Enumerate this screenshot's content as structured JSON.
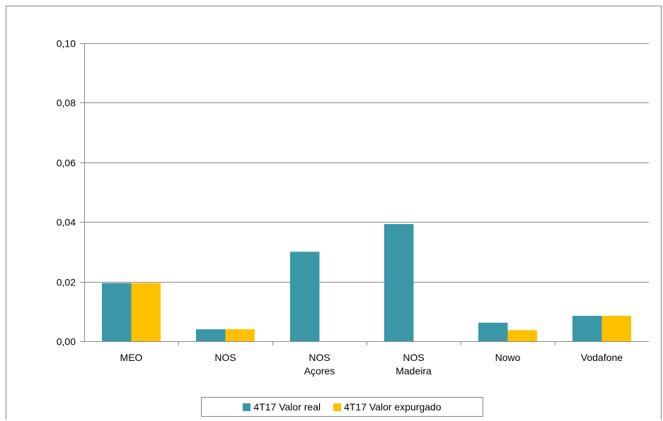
{
  "chart_data": {
    "type": "bar",
    "categories": [
      [
        "MEO"
      ],
      [
        "NOS"
      ],
      [
        "NOS",
        "Açores"
      ],
      [
        "NOS",
        "Madeira"
      ],
      [
        "Nowo"
      ],
      [
        "Vodafone"
      ]
    ],
    "series": [
      {
        "name": "4T17 Valor real",
        "color": "#3a97a8",
        "values": [
          0.0195,
          0.004,
          0.03,
          0.0393,
          0.0062,
          0.0085
        ]
      },
      {
        "name": "4T17 Valor expurgado",
        "color": "#ffc000",
        "values": [
          0.0195,
          0.004,
          0,
          0,
          0.0037,
          0.0085
        ]
      }
    ],
    "ylim": [
      0,
      0.1
    ],
    "yticks": [
      "0,00",
      "0,02",
      "0,04",
      "0,06",
      "0,08",
      "0,10"
    ],
    "ytick_values": [
      0,
      0.02,
      0.04,
      0.06,
      0.08,
      0.1
    ],
    "grid": true,
    "legend": "bottom"
  }
}
